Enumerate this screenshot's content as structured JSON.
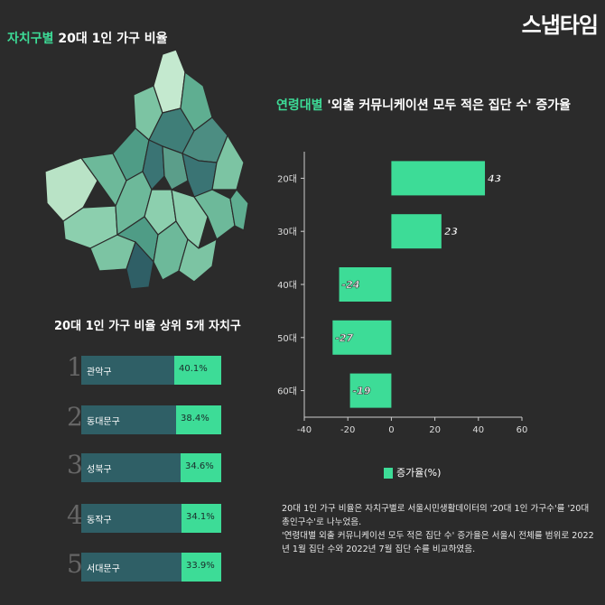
{
  "header": {
    "map_title_highlight": "자치구별",
    "map_title_rest": " 20대 1인 가구 비율",
    "logo": "스냅타임"
  },
  "top5": {
    "title": "20대 1인 가구 비율 상위 5개 자치구",
    "items": [
      {
        "rank": "1",
        "name": "관악구",
        "value_label": "40.1%",
        "value": 40.1
      },
      {
        "rank": "2",
        "name": "동대문구",
        "value_label": "38.4%",
        "value": 38.4
      },
      {
        "rank": "3",
        "name": "성북구",
        "value_label": "34.6%",
        "value": 34.6
      },
      {
        "rank": "4",
        "name": "동작구",
        "value_label": "34.1%",
        "value": 34.1
      },
      {
        "rank": "5",
        "name": "서대문구",
        "value_label": "33.9%",
        "value": 33.9
      }
    ]
  },
  "chart_title": {
    "highlight": "연령대별",
    "rest": " '외출 커뮤니케이션 모두 적은 집단 수' 증가율"
  },
  "chart_data": {
    "type": "bar",
    "orientation": "horizontal",
    "categories": [
      "20대",
      "30대",
      "40대",
      "50대",
      "60대"
    ],
    "series": [
      {
        "name": "증가율(%)",
        "values": [
          43,
          23,
          -24,
          -27,
          -19
        ]
      }
    ],
    "xlim": [
      -40,
      60
    ],
    "xticks": [
      "-40",
      "-20",
      "0",
      "20",
      "40",
      "60"
    ],
    "legend": "bottom",
    "grid": false,
    "bar_color": "#3ddc97"
  },
  "notes": [
    "20대 1인 가구 비율은 자치구별로 서울시민생활데이터의 '20대 1인 가구수'를 '20대 총인구수'로 나누었음.",
    "'연령대별 외출 커뮤니케이션 모두 적은 집단 수' 증가율은 서울시 전체를 범위로 2022년 1월 집단 수와 2022년 7월 집단 수를 비교하였음."
  ],
  "colors": {
    "accent": "#3ddc97",
    "background": "#2b2b2b",
    "bar_dark": "#2f5f66"
  }
}
